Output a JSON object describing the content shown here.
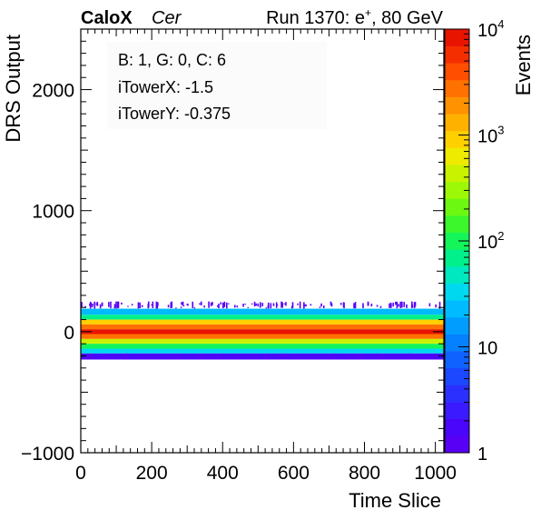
{
  "header": {
    "brand": "CaloX",
    "channel": "Cer",
    "run_label": "Run 1370: e",
    "run_sup": "+",
    "run_energy": ", 80 GeV"
  },
  "info_box": {
    "line1": "B: 1, G: 0, C: 6",
    "line2": "iTowerX: -1.5",
    "line3": "iTowerY: -0.375"
  },
  "chart_data": {
    "type": "heatmap",
    "title": "",
    "xlabel": "Time Slice",
    "ylabel": "DRS Output",
    "zlabel": "Events",
    "xlim": [
      0,
      1024
    ],
    "ylim": [
      -1000,
      2500
    ],
    "zlim": [
      1,
      10000
    ],
    "z_log_scale": true,
    "x_ticks": [
      "0",
      "200",
      "400",
      "600",
      "800",
      "1000"
    ],
    "y_ticks": [
      "−1000",
      "0",
      "1000",
      "2000"
    ],
    "z_ticks": [
      {
        "base": "1",
        "exp": ""
      },
      {
        "base": "10",
        "exp": ""
      },
      {
        "base": "10",
        "exp": "2"
      },
      {
        "base": "10",
        "exp": "3"
      },
      {
        "base": "10",
        "exp": "4"
      }
    ],
    "palette": [
      "#5800f5",
      "#4a06fa",
      "#3b1aff",
      "#2b30ff",
      "#1c48ff",
      "#0f62ff",
      "#0580ff",
      "#009dff",
      "#00bbff",
      "#00d8f0",
      "#00e8c0",
      "#00f08c",
      "#14f55a",
      "#3cf72c",
      "#6df812",
      "#9df808",
      "#c8f200",
      "#eeea00",
      "#ffd000",
      "#ffb100",
      "#ff9200",
      "#ff7100",
      "#ff4e00",
      "#f52e00",
      "#e81400"
    ],
    "bands": [
      {
        "y_min": 140,
        "y_max": 190,
        "events": 20
      },
      {
        "y_min": 100,
        "y_max": 140,
        "events": 80
      },
      {
        "y_min": 60,
        "y_max": 100,
        "events": 900
      },
      {
        "y_min": 20,
        "y_max": 60,
        "events": 3000
      },
      {
        "y_min": -20,
        "y_max": 20,
        "events": 7500
      },
      {
        "y_min": -60,
        "y_max": -20,
        "events": 2500
      },
      {
        "y_min": -100,
        "y_max": -60,
        "events": 500
      },
      {
        "y_min": -140,
        "y_max": -100,
        "events": 120
      },
      {
        "y_min": -180,
        "y_max": -140,
        "events": 30
      },
      {
        "y_min": -230,
        "y_max": -180,
        "events": 2
      }
    ],
    "upper_tail": {
      "y_min": 190,
      "y_max": 250,
      "events": 1
    },
    "lower_tail": {
      "y_min": -230,
      "y_max": -180,
      "events": 1
    },
    "grid": false,
    "legend": "colorbar-right"
  }
}
